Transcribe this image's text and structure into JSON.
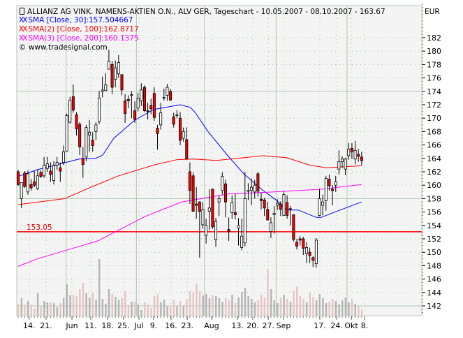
{
  "header": {
    "title": "ALLIANZ AG VINK. NAMENS-AKTIEN O.N., ALV GER, Tageschart - 10.05.2007 - 08.10.2007 - 163.67",
    "currency": "EUR",
    "copyright": "© www.tradesignal.com",
    "xx": "XX"
  },
  "legend": [
    {
      "label": "SMA [Close, 30]:157.504667",
      "color": "#0000ff"
    },
    {
      "label": "SMA(2) [Close, 100]:162.8717",
      "color": "#ff0000"
    },
    {
      "label": "SMA(3) [Close, 200]:160.1375",
      "color": "#ff00ff"
    }
  ],
  "reference_line": {
    "label": "153.05",
    "value": 153.05,
    "color": "#ff0000"
  },
  "chart_data": {
    "type": "candlestick",
    "title": "ALLIANZ AG VINK. NAMENS-AKTIEN O.N., ALV GER, Tageschart - 10.05.2007 - 08.10.2007 - 163.67",
    "ylabel": "EUR",
    "ylim": [
      140.5,
      187
    ],
    "yticks": [
      142,
      144,
      146,
      148,
      150,
      152,
      154,
      156,
      158,
      160,
      162,
      164,
      166,
      168,
      170,
      172,
      174,
      176,
      178,
      180,
      182
    ],
    "ytick_labels": [
      "142",
      "144",
      "146",
      "148",
      "150",
      "152",
      "154",
      "156",
      "158",
      "160",
      "162",
      "164",
      "166",
      "168",
      "170",
      "172",
      "174",
      "176",
      "178",
      "180",
      "182"
    ],
    "xtick_labels": [
      {
        "label": "14.",
        "i": 3.4
      },
      {
        "label": "21.",
        "i": 8.6
      },
      {
        "label": "Jun",
        "i": 16.6
      },
      {
        "label": "11.",
        "i": 22.4
      },
      {
        "label": "18.",
        "i": 27.6
      },
      {
        "label": "25.",
        "i": 32.5
      },
      {
        "label": "Jul",
        "i": 37.3
      },
      {
        "label": "9.",
        "i": 41.8
      },
      {
        "label": "16.",
        "i": 47.2
      },
      {
        "label": "23.",
        "i": 52.2
      },
      {
        "label": "Aug",
        "i": 59.7
      },
      {
        "label": "13.",
        "i": 67.7
      },
      {
        "label": "20.",
        "i": 72.4
      },
      {
        "label": "27.",
        "i": 77.2
      },
      {
        "label": "Sep",
        "i": 81.9
      },
      {
        "label": "17.",
        "i": 93.1
      },
      {
        "label": "24.",
        "i": 98.3
      },
      {
        "label": "Okt",
        "i": 102.8
      },
      {
        "label": "8.",
        "i": 106.9
      }
    ],
    "month_boundaries": [
      14.8,
      36.5,
      57.5,
      79.6,
      101.5
    ],
    "up_color": "#ffffff",
    "down_color": "#ff0000",
    "ohlc": [
      [
        162.0,
        162.3,
        159.9,
        160.1
      ],
      [
        158.0,
        160.4,
        156.6,
        160.4
      ],
      [
        161.8,
        162.1,
        159.6,
        159.8
      ],
      [
        159.0,
        162.2,
        158.6,
        161.7
      ],
      [
        160.1,
        160.9,
        159.2,
        159.6
      ],
      [
        160.5,
        162.1,
        159.7,
        160.0
      ],
      [
        159.5,
        162.3,
        159.3,
        161.4
      ],
      [
        161.9,
        162.2,
        161.1,
        161.3
      ],
      [
        161.4,
        164.2,
        161.1,
        163.0
      ],
      [
        162.5,
        164.2,
        162.0,
        163.2
      ],
      [
        162.1,
        163.4,
        160.5,
        161.6
      ],
      [
        160.7,
        163.6,
        160.1,
        162.9
      ],
      [
        163.0,
        164.2,
        162.3,
        163.4
      ],
      [
        162.6,
        163.4,
        160.5,
        162.1
      ],
      [
        163.4,
        165.9,
        163.0,
        165.0
      ],
      [
        165.1,
        170.7,
        165.0,
        170.4
      ],
      [
        169.4,
        173.2,
        169.2,
        172.7
      ],
      [
        173.2,
        175.0,
        170.8,
        171.2
      ],
      [
        170.5,
        170.9,
        167.4,
        168.4
      ],
      [
        169.1,
        169.4,
        164.5,
        165.7
      ],
      [
        164.0,
        165.7,
        161.1,
        163.1
      ],
      [
        164.2,
        169.0,
        163.6,
        168.6
      ],
      [
        167.5,
        169.7,
        165.0,
        167.9
      ],
      [
        166.7,
        167.9,
        165.0,
        165.9
      ],
      [
        168.0,
        169.4,
        166.7,
        169.0
      ],
      [
        169.5,
        174.0,
        169.1,
        173.0
      ],
      [
        174.0,
        176.2,
        173.1,
        174.2
      ],
      [
        174.1,
        176.7,
        174.1,
        175.0
      ],
      [
        177.3,
        180.2,
        177.3,
        178.5
      ],
      [
        178.0,
        178.5,
        173.6,
        174.6
      ],
      [
        175.8,
        178.6,
        174.6,
        177.5
      ],
      [
        176.6,
        179.4,
        176.0,
        178.3
      ],
      [
        176.5,
        176.5,
        173.4,
        174.2
      ],
      [
        172.6,
        173.6,
        169.3,
        170.7
      ],
      [
        172.8,
        173.4,
        171.5,
        172.6
      ],
      [
        173.4,
        174.0,
        170.0,
        173.5
      ],
      [
        171.1,
        172.5,
        169.3,
        169.8
      ],
      [
        171.5,
        173.8,
        171.0,
        173.0
      ],
      [
        172.6,
        175.2,
        171.8,
        174.2
      ],
      [
        174.6,
        174.9,
        170.9,
        171.1
      ],
      [
        171.1,
        172.3,
        169.8,
        171.0
      ],
      [
        171.9,
        172.9,
        170.6,
        171.4
      ],
      [
        173.7,
        174.6,
        169.6,
        170.1
      ],
      [
        168.5,
        169.0,
        165.3,
        167.7
      ],
      [
        169.0,
        172.3,
        168.3,
        170.8
      ],
      [
        173.0,
        174.4,
        172.6,
        173.1
      ],
      [
        173.4,
        175.1,
        172.6,
        174.6
      ],
      [
        174.0,
        174.4,
        172.6,
        172.7
      ],
      [
        170.2,
        170.8,
        168.6,
        169.1
      ],
      [
        170.5,
        171.2,
        170.0,
        170.5
      ],
      [
        170.0,
        170.9,
        166.0,
        166.7
      ],
      [
        167.0,
        168.6,
        166.5,
        168.0
      ],
      [
        166.8,
        168.6,
        163.9,
        163.9
      ],
      [
        162.0,
        163.4,
        157.2,
        159.2
      ],
      [
        161.4,
        161.9,
        156.1,
        156.1
      ],
      [
        157.2,
        159.7,
        155.0,
        157.0
      ],
      [
        157.5,
        157.6,
        149.2,
        156.1
      ],
      [
        154.1,
        157.5,
        153.5,
        156.4
      ],
      [
        152.5,
        155.0,
        151.3,
        154.0
      ],
      [
        156.1,
        159.4,
        153.3,
        156.6
      ],
      [
        159.4,
        159.5,
        153.5,
        153.8
      ],
      [
        151.9,
        155.1,
        150.8,
        154.6
      ],
      [
        157.5,
        158.5,
        155.4,
        158.0
      ],
      [
        159.2,
        161.9,
        158.6,
        161.3
      ],
      [
        160.2,
        160.8,
        155.2,
        157.5
      ],
      [
        153.4,
        155.2,
        151.7,
        153.1
      ],
      [
        155.9,
        158.5,
        155.0,
        157.4
      ],
      [
        155.9,
        158.7,
        154.9,
        155.6
      ],
      [
        153.6,
        155.1,
        151.0,
        154.0
      ],
      [
        150.7,
        155.0,
        150.3,
        152.4
      ],
      [
        151.4,
        162.0,
        150.9,
        158.0
      ],
      [
        159.1,
        160.3,
        157.8,
        159.2
      ],
      [
        159.2,
        161.0,
        157.0,
        159.7
      ],
      [
        159.0,
        160.8,
        158.0,
        160.0
      ],
      [
        161.7,
        162.0,
        158.3,
        159.1
      ],
      [
        157.9,
        158.9,
        156.4,
        157.7
      ],
      [
        157.8,
        158.1,
        155.4,
        156.6
      ],
      [
        156.4,
        157.5,
        154.8,
        154.8
      ],
      [
        153.1,
        155.2,
        152.1,
        154.4
      ],
      [
        155.6,
        156.9,
        152.8,
        155.8
      ],
      [
        157.0,
        157.9,
        156.3,
        157.3
      ],
      [
        157.2,
        157.6,
        155.4,
        156.4
      ],
      [
        155.5,
        159.1,
        155.4,
        158.6
      ],
      [
        157.4,
        158.5,
        155.0,
        155.5
      ],
      [
        156.4,
        156.9,
        154.0,
        156.5
      ],
      [
        155.6,
        155.6,
        151.6,
        151.9
      ],
      [
        151.5,
        152.0,
        150.4,
        150.9
      ],
      [
        152.0,
        152.4,
        151.0,
        151.8
      ],
      [
        152.0,
        152.3,
        149.6,
        150.6
      ],
      [
        149.8,
        151.5,
        148.4,
        150.7
      ],
      [
        150.0,
        150.7,
        148.4,
        149.5
      ],
      [
        149.2,
        149.4,
        147.8,
        148.8
      ],
      [
        148.3,
        152.1,
        147.7,
        151.8
      ],
      [
        155.5,
        159.5,
        155.4,
        158.0
      ],
      [
        157.0,
        158.6,
        155.5,
        157.5
      ],
      [
        157.7,
        161.4,
        156.2,
        161.0
      ],
      [
        160.9,
        161.6,
        159.2,
        159.9
      ],
      [
        159.4,
        160.0,
        157.0,
        159.2
      ],
      [
        160.0,
        161.4,
        159.0,
        160.5
      ],
      [
        162.4,
        165.2,
        161.6,
        163.5
      ],
      [
        163.5,
        164.3,
        162.6,
        163.9
      ],
      [
        162.4,
        164.1,
        161.5,
        163.9
      ],
      [
        164.4,
        166.3,
        163.8,
        165.4
      ],
      [
        165.5,
        166.3,
        163.9,
        165.0
      ],
      [
        163.9,
        166.6,
        163.1,
        165.2
      ],
      [
        164.6,
        165.4,
        163.5,
        164.3
      ],
      [
        164.2,
        165.0,
        163.0,
        163.67
      ]
    ],
    "volume_relative": [
      16,
      25,
      16,
      21,
      16,
      10,
      32,
      13,
      21,
      19,
      19,
      18,
      12,
      18,
      25,
      45,
      29,
      29,
      28,
      38,
      47,
      32,
      26,
      32,
      23,
      81,
      24,
      17,
      38,
      31,
      27,
      23,
      25,
      35,
      15,
      20,
      20,
      16,
      8,
      19,
      16,
      11,
      28,
      31,
      19,
      23,
      14,
      13,
      22,
      14,
      21,
      14,
      24,
      35,
      34,
      46,
      35,
      29,
      31,
      25,
      29,
      28,
      25,
      20,
      25,
      22,
      30,
      18,
      26,
      34,
      40,
      28,
      24,
      19,
      22,
      30,
      26,
      67,
      38,
      22,
      18,
      26,
      30,
      24,
      20,
      36,
      42,
      28,
      24,
      19,
      33,
      27,
      22,
      31,
      25,
      18,
      20,
      24,
      21,
      16,
      22,
      26,
      19,
      23,
      17,
      14,
      9
    ],
    "series": [
      {
        "name": "SMA [Close, 30]",
        "color": "#0000ff",
        "points": [
          [
            0,
            161.3
          ],
          [
            5.8,
            162.3
          ],
          [
            13.1,
            163.2
          ],
          [
            18.8,
            163.9
          ],
          [
            23.9,
            164.0
          ],
          [
            26.1,
            164.5
          ],
          [
            29.5,
            167.0
          ],
          [
            36,
            169.7
          ],
          [
            41.8,
            171.3
          ],
          [
            45.5,
            171.6
          ],
          [
            50,
            172.0
          ],
          [
            53.2,
            171.6
          ],
          [
            54.7,
            170.8
          ],
          [
            58.6,
            168.0
          ],
          [
            64.7,
            164.4
          ],
          [
            69.8,
            161.6
          ],
          [
            75.6,
            159.2
          ],
          [
            79.9,
            157.7
          ],
          [
            82.8,
            156.3
          ],
          [
            86.4,
            156.3
          ],
          [
            92,
            155.2
          ],
          [
            93.5,
            155.2
          ],
          [
            99.4,
            156.3
          ],
          [
            106,
            157.5
          ]
        ]
      },
      {
        "name": "SMA(2) [Close, 100]",
        "color": "#ff0000",
        "points": [
          [
            0,
            157.1
          ],
          [
            14.4,
            158.0
          ],
          [
            22.4,
            159.7
          ],
          [
            31,
            161.4
          ],
          [
            41.8,
            163.0
          ],
          [
            48.9,
            163.8
          ],
          [
            54.1,
            163.9
          ],
          [
            61.2,
            163.7
          ],
          [
            75.6,
            164.4
          ],
          [
            82.8,
            164.1
          ],
          [
            89.9,
            163.0
          ],
          [
            95,
            162.6
          ],
          [
            106,
            162.9
          ]
        ]
      },
      {
        "name": "SMA(3) [Close, 200]",
        "color": "#ff00ff",
        "points": [
          [
            0,
            147.9
          ],
          [
            5.8,
            149.0
          ],
          [
            24.6,
            151.7
          ],
          [
            39,
            155.3
          ],
          [
            50.4,
            157.5
          ],
          [
            64.9,
            158.7
          ],
          [
            79,
            159.0
          ],
          [
            93.5,
            159.4
          ],
          [
            106,
            160.1
          ]
        ]
      }
    ]
  }
}
